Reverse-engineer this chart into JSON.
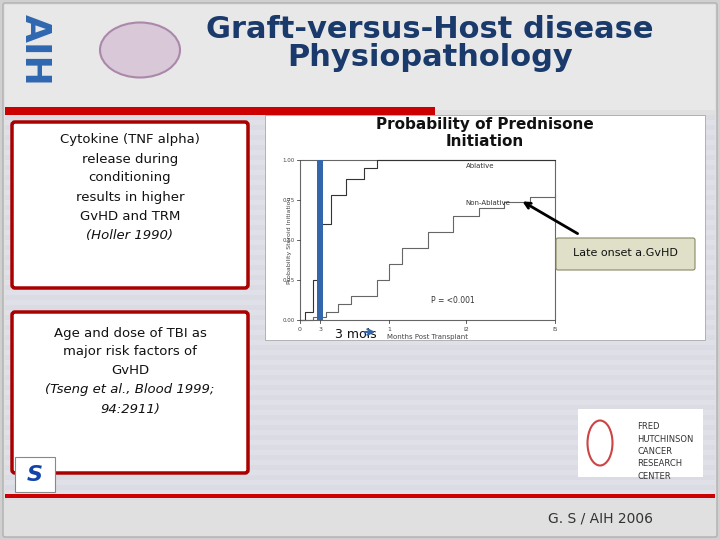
{
  "title_line1": "Graft-versus-Host disease",
  "title_line2": "Physiopathology",
  "title_color": "#1a3a6b",
  "title_fontsize": 22,
  "bg_color": "#e8e8e8",
  "slide_bg": "#d8d8d8",
  "box1_lines_normal": [
    "Cytokine (TNF alpha)",
    "release during",
    "conditioning",
    "results in higher",
    "GvHD and TRM"
  ],
  "box1_line_italic": "(Holler 1990)",
  "box2_lines_normal": [
    "Age and dose of TBI as",
    "major risk factors of",
    "GvHD"
  ],
  "box2_line_italic1": "(Tseng et al., Blood 1999;",
  "box2_line_italic2": "94:2911)",
  "box_border_color": "#aa0000",
  "box_text_color": "#111111",
  "separator_color": "#cc0000",
  "footer_text": "G. S / AIH 2006",
  "chart_title1": "Probability of Prednisone",
  "chart_title2": "Initiation",
  "late_onset_text": "Late onset a.GvHD",
  "three_mois_text": "3 mois",
  "p_value_text": "P = <0.001",
  "ablative_text": "Ablative",
  "non_ablative_text": "Non-Ablative"
}
